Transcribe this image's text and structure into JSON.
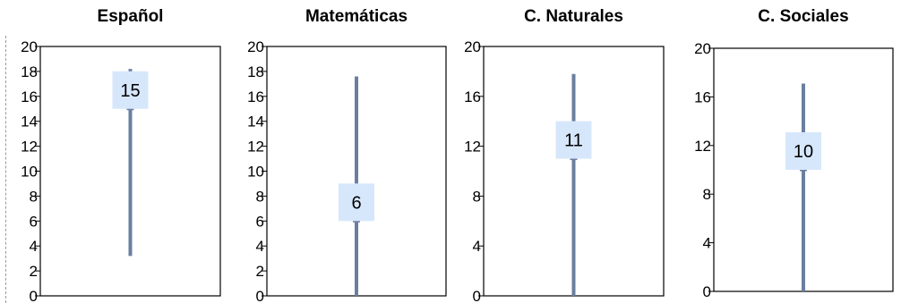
{
  "colors": {
    "bar": "#6a7fa0",
    "label_box": "#d7e7fb",
    "axis": "#000000",
    "text": "#000000"
  },
  "chart_data": [
    {
      "type": "range",
      "title": "Español",
      "ylim": [
        0,
        20
      ],
      "yticks": [
        0,
        2,
        4,
        6,
        8,
        10,
        12,
        14,
        16,
        18,
        20
      ],
      "range": [
        3.2,
        18.2
      ],
      "value": 15
    },
    {
      "type": "range",
      "title": "Matemáticas",
      "ylim": [
        0,
        20
      ],
      "yticks": [
        0,
        2,
        4,
        6,
        8,
        10,
        12,
        14,
        16,
        18,
        20
      ],
      "range": [
        0,
        17.6
      ],
      "value": 6
    },
    {
      "type": "range",
      "title": "C. Naturales",
      "ylim": [
        0,
        20
      ],
      "yticks": [
        0,
        4,
        8,
        12,
        16,
        20
      ],
      "range": [
        0,
        17.8
      ],
      "value": 11
    },
    {
      "type": "range",
      "title": "C. Sociales",
      "ylim": [
        0,
        20
      ],
      "yticks": [
        0,
        4,
        8,
        12,
        16,
        20
      ],
      "range": [
        0,
        17.1
      ],
      "value": 10
    }
  ]
}
